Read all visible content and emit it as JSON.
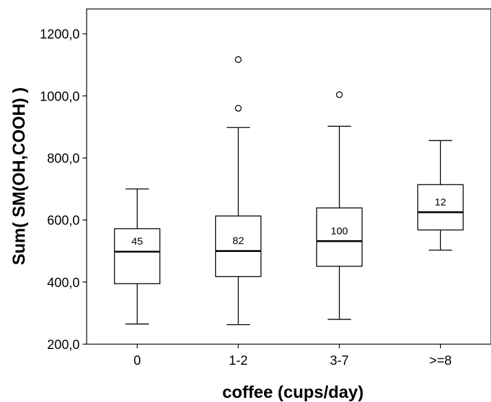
{
  "chart_data": {
    "type": "boxplot",
    "title": "",
    "xlabel": "coffee (cups/day)",
    "ylabel": "Sum( SM(OH,COOH) )",
    "ylim": [
      200,
      1280
    ],
    "yticks": [
      200,
      400,
      600,
      800,
      1000,
      1200
    ],
    "ytick_labels": [
      "200,0",
      "400,0",
      "600,0",
      "800,0",
      "1000,0",
      "1200,0"
    ],
    "categories": [
      "0",
      "1-2",
      "3-7",
      ">=8"
    ],
    "boxes": [
      {
        "category": "0",
        "whisker_low": 265,
        "q1": 395,
        "median": 498,
        "q3": 572,
        "whisker_high": 700,
        "n": "45",
        "outliers": []
      },
      {
        "category": "1-2",
        "whisker_low": 263,
        "q1": 418,
        "median": 500,
        "q3": 613,
        "whisker_high": 898,
        "n": "82",
        "outliers": [
          960,
          1117
        ]
      },
      {
        "category": "3-7",
        "whisker_low": 280,
        "q1": 451,
        "median": 532,
        "q3": 639,
        "whisker_high": 902,
        "n": "100",
        "outliers": [
          1004
        ]
      },
      {
        "category": ">=8",
        "whisker_low": 503,
        "q1": 568,
        "median": 625,
        "q3": 714,
        "whisker_high": 856,
        "n": "12",
        "outliers": []
      }
    ],
    "grid": false,
    "legend": "none"
  }
}
